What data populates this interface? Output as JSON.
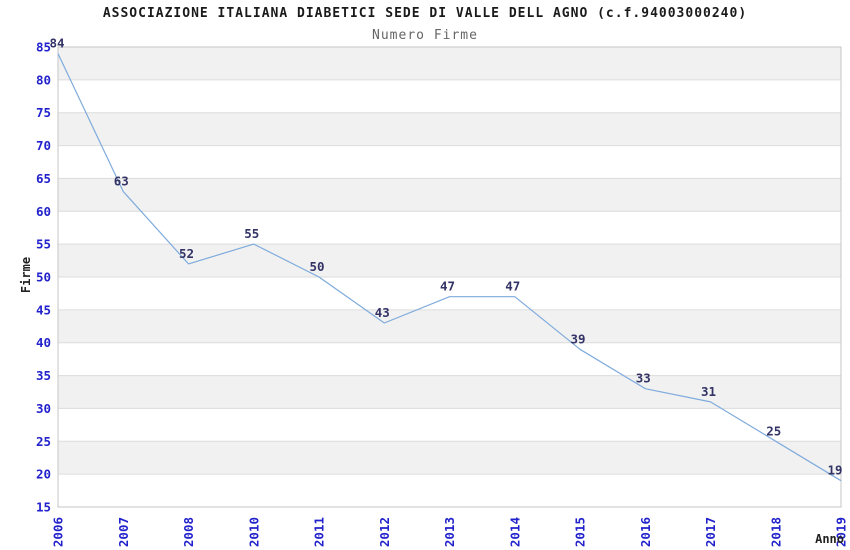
{
  "chart_data": {
    "type": "line",
    "title": "ASSOCIAZIONE ITALIANA DIABETICI SEDE DI VALLE DELL AGNO (c.f.94003000240)",
    "subtitle": "Numero Firme",
    "xlabel": "Anno",
    "ylabel": "Firme",
    "categories": [
      "2006",
      "2007",
      "2008",
      "2010",
      "2011",
      "2012",
      "2013",
      "2014",
      "2015",
      "2016",
      "2017",
      "2018",
      "2019"
    ],
    "series": [
      {
        "name": "Numero Firme",
        "values": [
          84,
          63,
          52,
          55,
          50,
          43,
          47,
          47,
          39,
          33,
          31,
          25,
          19
        ]
      }
    ],
    "data_labels_shown": true,
    "ylim": [
      15,
      85
    ],
    "ytick_step": 5,
    "grid": true,
    "alternating_bands": true,
    "legend_position": "none",
    "colors": {
      "line": "#7fabdc",
      "tick_label": "#2222cc",
      "data_label": "#333366",
      "band": "#f1f1f1",
      "band_alt": "#ffffff",
      "gridline": "#dcdcdc",
      "plot_border": "#c6c6c6",
      "title": "#1a1a1a",
      "subtitle": "#666666",
      "axis_title": "#222222",
      "background": "#ffffff"
    }
  }
}
